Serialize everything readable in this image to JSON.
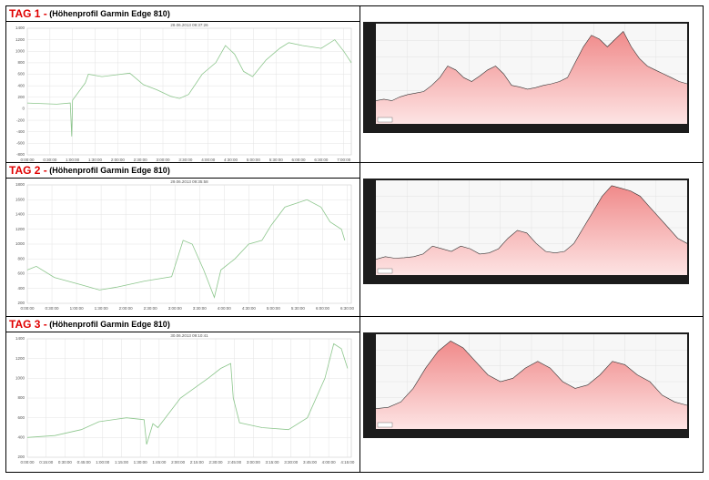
{
  "headings": [
    {
      "day": "TAG 1 -",
      "label": "(Höhenprofil Garmin Edge 810)"
    },
    {
      "day": "TAG 2 -",
      "label": "(Höhenprofil Garmin Edge 810)"
    },
    {
      "day": "TAG 3 -",
      "label": "(Höhenprofil Garmin Edge 810)"
    }
  ],
  "chart_data": [
    {
      "type": "line",
      "subtitle": "28.06.2013 09:37:26",
      "color": "#8cc68c",
      "grid": true,
      "x": [
        0,
        39,
        57,
        59,
        60,
        77,
        81,
        99,
        136,
        154,
        172,
        190,
        202,
        214,
        232,
        250,
        263,
        275,
        287,
        299,
        317,
        335,
        347,
        365,
        390,
        408,
        420,
        430
      ],
      "values": [
        100,
        80,
        100,
        -480,
        150,
        450,
        600,
        560,
        620,
        420,
        330,
        220,
        180,
        250,
        600,
        800,
        1100,
        950,
        650,
        560,
        850,
        1050,
        1150,
        1100,
        1050,
        1200,
        1000,
        800
      ],
      "xlim": [
        0,
        430
      ],
      "ylim": [
        -800,
        1400
      ],
      "yticks": [
        -800,
        -600,
        -400,
        -200,
        0,
        200,
        400,
        600,
        800,
        1000,
        1200,
        1400
      ],
      "xticks": [
        {
          "value": 0,
          "label": "0:00:00"
        },
        {
          "value": 30,
          "label": "0:30:00"
        },
        {
          "value": 60,
          "label": "1:00:00"
        },
        {
          "value": 90,
          "label": "1:30:00"
        },
        {
          "value": 120,
          "label": "2:00:00"
        },
        {
          "value": 150,
          "label": "2:30:00"
        },
        {
          "value": 180,
          "label": "3:00:00"
        },
        {
          "value": 210,
          "label": "3:30:00"
        },
        {
          "value": 240,
          "label": "4:00:00"
        },
        {
          "value": 270,
          "label": "4:30:00"
        },
        {
          "value": 300,
          "label": "5:00:00"
        },
        {
          "value": 330,
          "label": "5:30:00"
        },
        {
          "value": 360,
          "label": "6:00:00"
        },
        {
          "value": 390,
          "label": "6:30:00"
        },
        {
          "value": 420,
          "label": "7:00:00"
        }
      ]
    },
    {
      "type": "area",
      "color": "#f6a3a3",
      "ylim": [
        0,
        1300
      ],
      "values": [
        300,
        320,
        300,
        350,
        380,
        400,
        420,
        500,
        600,
        750,
        700,
        600,
        550,
        620,
        700,
        750,
        650,
        500,
        480,
        450,
        470,
        500,
        520,
        550,
        600,
        800,
        1000,
        1150,
        1100,
        1000,
        1100,
        1200,
        1000,
        850,
        750,
        700,
        650,
        600,
        550,
        520
      ]
    },
    {
      "type": "line",
      "subtitle": "29.06.2013 09:35:58",
      "color": "#8cc68c",
      "grid": true,
      "x": [
        0,
        11,
        33,
        66,
        88,
        110,
        143,
        176,
        190,
        201,
        215,
        228,
        236,
        253,
        270,
        286,
        297,
        314,
        341,
        358,
        369,
        383,
        387
      ],
      "values": [
        650,
        700,
        550,
        450,
        380,
        420,
        500,
        560,
        1050,
        1000,
        650,
        280,
        650,
        800,
        1000,
        1050,
        1250,
        1500,
        1600,
        1500,
        1300,
        1200,
        1050
      ],
      "xlim": [
        0,
        395
      ],
      "ylim": [
        200,
        1800
      ],
      "yticks": [
        200,
        400,
        600,
        800,
        1000,
        1200,
        1400,
        1600,
        1800
      ],
      "xticks": [
        {
          "value": 0,
          "label": "0:00:00"
        },
        {
          "value": 30,
          "label": "0:30:00"
        },
        {
          "value": 60,
          "label": "1:00:00"
        },
        {
          "value": 90,
          "label": "1:30:00"
        },
        {
          "value": 120,
          "label": "2:00:00"
        },
        {
          "value": 150,
          "label": "2:30:00"
        },
        {
          "value": 180,
          "label": "3:00:00"
        },
        {
          "value": 210,
          "label": "3:30:00"
        },
        {
          "value": 240,
          "label": "4:00:00"
        },
        {
          "value": 270,
          "label": "4:30:00"
        },
        {
          "value": 300,
          "label": "5:00:00"
        },
        {
          "value": 330,
          "label": "5:30:00"
        },
        {
          "value": 360,
          "label": "6:00:00"
        },
        {
          "value": 390,
          "label": "6:30:00"
        }
      ]
    },
    {
      "type": "area",
      "color": "#f6a3a3",
      "ylim": [
        0,
        1800
      ],
      "values": [
        300,
        350,
        320,
        330,
        350,
        400,
        550,
        500,
        450,
        550,
        500,
        400,
        420,
        500,
        700,
        850,
        800,
        600,
        450,
        420,
        450,
        600,
        900,
        1200,
        1500,
        1700,
        1650,
        1600,
        1500,
        1300,
        1100,
        900,
        700,
        600
      ]
    },
    {
      "type": "line",
      "subtitle": "30.06.2013 09:10:41",
      "color": "#8cc68c",
      "grid": true,
      "x": [
        0,
        22,
        43,
        57,
        79,
        93,
        95,
        100,
        104,
        122,
        144,
        154,
        162,
        164,
        169,
        187,
        208,
        223,
        237,
        244,
        250,
        255
      ],
      "values": [
        400,
        420,
        480,
        560,
        600,
        580,
        330,
        540,
        500,
        800,
        1000,
        1100,
        1150,
        800,
        550,
        500,
        480,
        600,
        1000,
        1350,
        1300,
        1100
      ],
      "xlim": [
        0,
        258
      ],
      "ylim": [
        200,
        1400
      ],
      "yticks": [
        200,
        400,
        600,
        800,
        1000,
        1200,
        1400
      ],
      "xticks": [
        {
          "value": 0,
          "label": "0:00:00"
        },
        {
          "value": 15,
          "label": "0:15:00"
        },
        {
          "value": 30,
          "label": "0:30:00"
        },
        {
          "value": 45,
          "label": "0:45:00"
        },
        {
          "value": 60,
          "label": "1:00:00"
        },
        {
          "value": 75,
          "label": "1:15:00"
        },
        {
          "value": 90,
          "label": "1:30:00"
        },
        {
          "value": 105,
          "label": "1:45:00"
        },
        {
          "value": 120,
          "label": "2:00:00"
        },
        {
          "value": 135,
          "label": "2:15:00"
        },
        {
          "value": 150,
          "label": "2:30:00"
        },
        {
          "value": 165,
          "label": "2:45:00"
        },
        {
          "value": 180,
          "label": "3:00:00"
        },
        {
          "value": 195,
          "label": "3:15:00"
        },
        {
          "value": 210,
          "label": "3:30:00"
        },
        {
          "value": 225,
          "label": "3:45:00"
        },
        {
          "value": 240,
          "label": "4:00:00"
        },
        {
          "value": 255,
          "label": "4:15:00"
        }
      ]
    },
    {
      "type": "area",
      "color": "#f6a3a3",
      "ylim": [
        0,
        1400
      ],
      "values": [
        300,
        320,
        400,
        600,
        900,
        1150,
        1300,
        1200,
        1000,
        800,
        700,
        750,
        900,
        1000,
        900,
        700,
        600,
        650,
        800,
        1000,
        950,
        800,
        700,
        500,
        400,
        350
      ]
    }
  ]
}
